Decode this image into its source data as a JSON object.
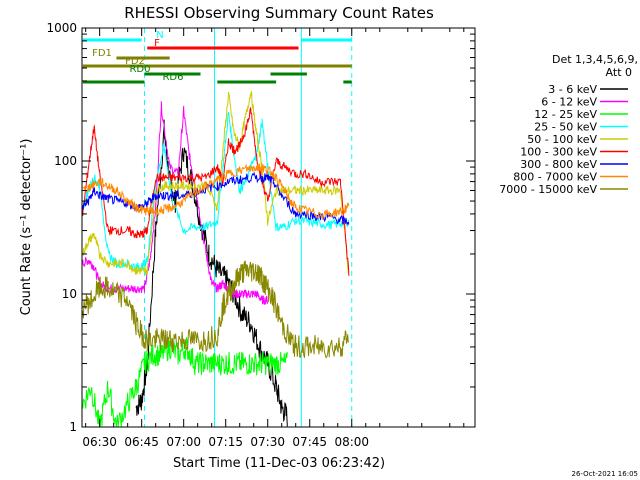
{
  "chart_data": {
    "type": "line",
    "title": "RHESSI Observing Summary Count Rates",
    "xlabel": "Start Time (11-Dec-03 06:23:42)",
    "ylabel": "Count Rate (s⁻¹ detector⁻¹)",
    "yscale": "log",
    "ylim": [
      1,
      1000
    ],
    "xlim_min": [
      23.7,
      164
    ],
    "x_ticks": [
      {
        "m": 30,
        "label": "06:30"
      },
      {
        "m": 45,
        "label": "06:45"
      },
      {
        "m": 60,
        "label": "07:00"
      },
      {
        "m": 75,
        "label": "07:15"
      },
      {
        "m": 90,
        "label": "07:30"
      },
      {
        "m": 105,
        "label": "07:45"
      },
      {
        "m": 120,
        "label": "08:00"
      }
    ],
    "y_ticks": [
      {
        "v": 1,
        "label": "1"
      },
      {
        "v": 10,
        "label": "10"
      },
      {
        "v": 100,
        "label": "100"
      },
      {
        "v": 1000,
        "label": "1000"
      }
    ],
    "legend_header": [
      "Det 1,3,4,5,6,9,",
      "Att 0"
    ],
    "legend_position": "right",
    "footer_date": "26-Oct-2021 16:05",
    "series": [
      {
        "name": "3 - 6 keV",
        "color": "#000000",
        "x": [
          24,
          30,
          36,
          40,
          43,
          45,
          47,
          50,
          53,
          55,
          57,
          60,
          63,
          66,
          69,
          72,
          75,
          78,
          81,
          84,
          87,
          90,
          93,
          95,
          97
        ],
        "y": [
          null,
          null,
          null,
          null,
          1.4,
          1.6,
          3,
          30,
          170,
          70,
          50,
          120,
          70,
          35,
          20,
          15,
          13,
          10,
          7,
          6,
          4,
          3,
          2,
          1.4,
          1.2
        ]
      },
      {
        "name": "6 - 12 keV",
        "color": "#ff00ff",
        "x": [
          24,
          26,
          28,
          30,
          33,
          36,
          40,
          43,
          46,
          48,
          50,
          52,
          55,
          58,
          60,
          62,
          65,
          68,
          70,
          72,
          74,
          76,
          78,
          80,
          82,
          84,
          86,
          88,
          90
        ],
        "y": [
          17,
          18,
          16,
          12,
          11,
          11,
          11,
          11,
          11,
          18,
          45,
          260,
          90,
          80,
          240,
          110,
          50,
          20,
          12,
          11,
          12,
          11,
          10,
          10,
          10,
          10,
          10,
          9,
          9
        ]
      },
      {
        "name": "12 - 25 keV",
        "color": "#00ff00",
        "x": [
          24,
          27,
          30,
          33,
          36,
          40,
          43,
          46,
          49,
          52,
          55,
          58,
          61,
          64,
          67,
          70,
          73,
          76,
          79,
          82,
          85,
          88,
          91,
          94,
          97
        ],
        "y": [
          1.5,
          2,
          1,
          2,
          1,
          1.5,
          2,
          3,
          3.5,
          3.5,
          4,
          3.5,
          4,
          3,
          3,
          3,
          3,
          3,
          3,
          3,
          3,
          3,
          3,
          3,
          3
        ]
      },
      {
        "name": "25 - 50 keV",
        "color": "#00ffff",
        "x": [
          24,
          26,
          28,
          30,
          33,
          36,
          40,
          43,
          45,
          47,
          50,
          53,
          56,
          60,
          64,
          68,
          72,
          74,
          76,
          78,
          80,
          82,
          84,
          86,
          88,
          90,
          93,
          96,
          100,
          104,
          108,
          112,
          116,
          119
        ],
        "y": [
          45,
          60,
          75,
          65,
          20,
          17,
          17,
          16,
          16,
          18,
          70,
          130,
          50,
          30,
          32,
          32,
          35,
          90,
          230,
          110,
          60,
          70,
          90,
          110,
          200,
          90,
          32,
          32,
          36,
          35,
          34,
          33,
          34,
          35
        ]
      },
      {
        "name": "50 - 100 keV",
        "color": "#cccc00",
        "x": [
          24,
          26,
          28,
          30,
          33,
          36,
          40,
          43,
          45,
          47,
          50,
          53,
          56,
          60,
          64,
          68,
          72,
          74,
          76,
          78,
          80,
          82,
          84,
          86,
          88,
          90,
          93,
          96,
          100,
          104,
          108,
          112,
          116,
          119
        ],
        "y": [
          20,
          25,
          28,
          20,
          17,
          17,
          17,
          15,
          15,
          15,
          60,
          65,
          65,
          65,
          65,
          65,
          45,
          120,
          320,
          160,
          130,
          210,
          330,
          160,
          90,
          35,
          60,
          60,
          60,
          60,
          60,
          60,
          60,
          14
        ]
      },
      {
        "name": "100 - 300 keV",
        "color": "#ff0000",
        "x": [
          24,
          26,
          28,
          30,
          33,
          36,
          40,
          43,
          45,
          47,
          50,
          53,
          56,
          60,
          64,
          68,
          72,
          74,
          76,
          78,
          80,
          82,
          84,
          86,
          88,
          90,
          93,
          96,
          100,
          104,
          108,
          112,
          116,
          119
        ],
        "y": [
          40,
          90,
          180,
          80,
          30,
          30,
          30,
          28,
          28,
          30,
          75,
          75,
          75,
          75,
          75,
          75,
          90,
          70,
          140,
          120,
          130,
          170,
          240,
          110,
          70,
          50,
          100,
          90,
          80,
          80,
          70,
          70,
          70,
          14
        ]
      },
      {
        "name": "300 - 800 keV",
        "color": "#0000ff",
        "x": [
          24,
          26,
          28,
          30,
          33,
          36,
          40,
          43,
          45,
          47,
          50,
          53,
          56,
          60,
          64,
          68,
          72,
          76,
          80,
          84,
          88,
          90,
          92,
          95,
          100,
          104,
          108,
          112,
          116,
          119
        ],
        "y": [
          45,
          50,
          60,
          55,
          52,
          50,
          48,
          45,
          45,
          48,
          55,
          55,
          55,
          55,
          58,
          62,
          65,
          70,
          72,
          75,
          75,
          75,
          70,
          55,
          40,
          40,
          38,
          38,
          36,
          35
        ]
      },
      {
        "name": "800 - 7000 keV",
        "color": "#ff8800",
        "x": [
          24,
          27,
          30,
          33,
          36,
          40,
          43,
          45,
          47,
          50,
          53,
          56,
          60,
          64,
          68,
          72,
          76,
          80,
          84,
          86,
          88,
          90,
          92,
          95,
          98,
          100,
          104,
          108,
          112,
          116,
          119
        ],
        "y": [
          60,
          65,
          70,
          65,
          60,
          50,
          45,
          43,
          42,
          42,
          43,
          45,
          50,
          58,
          65,
          72,
          80,
          85,
          88,
          90,
          90,
          85,
          80,
          65,
          50,
          45,
          42,
          40,
          40,
          42,
          45
        ]
      },
      {
        "name": "7000 - 15000 keV",
        "color": "#888800",
        "x": [
          24,
          27,
          30,
          33,
          36,
          40,
          43,
          45,
          47,
          50,
          53,
          56,
          60,
          64,
          68,
          72,
          74,
          76,
          78,
          80,
          82,
          84,
          86,
          88,
          90,
          92,
          95,
          98,
          100,
          104,
          108,
          112,
          116,
          119
        ],
        "y": [
          8,
          9,
          11,
          11,
          10,
          9,
          6,
          5,
          4.5,
          4.5,
          4.5,
          4.5,
          4.5,
          4.5,
          4.5,
          5,
          8,
          10,
          12,
          14,
          15,
          15,
          15,
          13,
          11,
          9,
          6,
          4.5,
          4,
          4,
          4,
          4,
          4,
          5
        ]
      }
    ],
    "status_bars": [
      {
        "label": "N",
        "color": "#00ffff",
        "segments": [
          [
            24,
            45
          ],
          [
            102,
            120
          ]
        ]
      },
      {
        "label": "F",
        "color": "#ff0000",
        "segments": [
          [
            47,
            101
          ]
        ]
      },
      {
        "label": "FD1",
        "color": "#808000",
        "segments": [
          [
            36,
            55
          ]
        ]
      },
      {
        "label": "FD2",
        "color": "#808000",
        "segments": [
          [
            24,
            120
          ]
        ]
      },
      {
        "label": "RD0",
        "color": "#008000",
        "segments": [
          [
            46,
            66
          ],
          [
            91,
            104
          ]
        ]
      },
      {
        "label": "RD6",
        "color": "#008000",
        "segments": [
          [
            24,
            46
          ],
          [
            72,
            93
          ],
          [
            117,
            120
          ]
        ]
      }
    ],
    "vlines_solid": [
      71,
      102
    ],
    "vlines_dashed": [
      46,
      120
    ]
  }
}
